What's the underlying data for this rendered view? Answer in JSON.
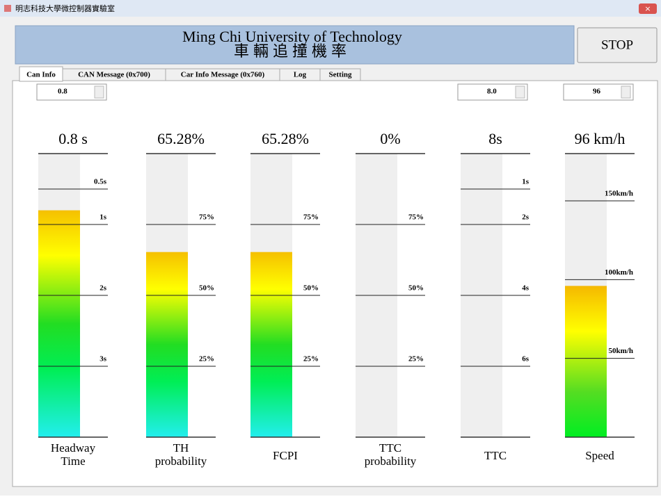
{
  "window": {
    "title": "明志科技大學微控制器實驗室"
  },
  "header": {
    "title": "Ming Chi University of Technology",
    "subtitle": "車輛追撞機率",
    "button": "STOP"
  },
  "tabs": [
    "Can Info",
    "CAN Message (0x700)",
    "Car Info Message (0x760)",
    "Log",
    "Setting"
  ],
  "controls": [
    "0.8",
    "8.0",
    "96"
  ],
  "gauges": [
    {
      "name": [
        "Headway",
        "Time"
      ],
      "value": 0.8,
      "value_label": "0.8 s",
      "lim": [
        0,
        4
      ],
      "ticks": [
        {
          "value": 0.5,
          "label": "0.5s"
        },
        {
          "value": 1,
          "label": "1s"
        },
        {
          "value": 2,
          "label": "2s"
        },
        {
          "value": 3,
          "label": "3s"
        }
      ]
    },
    {
      "name": [
        "TH",
        "probability"
      ],
      "value": 65.28,
      "value_label": "65.28%",
      "lim": [
        100,
        0
      ],
      "ticks": [
        {
          "value": 75,
          "label": "75%"
        },
        {
          "value": 50,
          "label": "50%"
        },
        {
          "value": 25,
          "label": "25%"
        }
      ]
    },
    {
      "name": [
        "FCPI"
      ],
      "value": 65.28,
      "value_label": "65.28%",
      "lim": [
        100,
        0
      ],
      "ticks": [
        {
          "value": 75,
          "label": "75%"
        },
        {
          "value": 50,
          "label": "50%"
        },
        {
          "value": 25,
          "label": "25%"
        }
      ]
    },
    {
      "name": [
        "TTC",
        "probability"
      ],
      "value": 0,
      "value_label": "0%",
      "lim": [
        100,
        0
      ],
      "ticks": [
        {
          "value": 75,
          "label": "75%"
        },
        {
          "value": 50,
          "label": "50%"
        },
        {
          "value": 25,
          "label": "25%"
        }
      ]
    },
    {
      "name": [
        "TTC"
      ],
      "value": 8,
      "value_label": "8s",
      "lim": [
        0,
        8
      ],
      "ticks": [
        {
          "value": 1,
          "label": "1s"
        },
        {
          "value": 2,
          "label": "2s"
        },
        {
          "value": 4,
          "label": "4s"
        },
        {
          "value": 6,
          "label": "6s"
        }
      ]
    },
    {
      "name": [
        "Speed"
      ],
      "value": 96,
      "value_label": "96 km/h",
      "lim": [
        180,
        0
      ],
      "ticks": [
        {
          "value": 150,
          "label": "150km/h"
        },
        {
          "value": 100,
          "label": "100km/h"
        },
        {
          "value": 50,
          "label": "50km/h"
        }
      ]
    }
  ]
}
